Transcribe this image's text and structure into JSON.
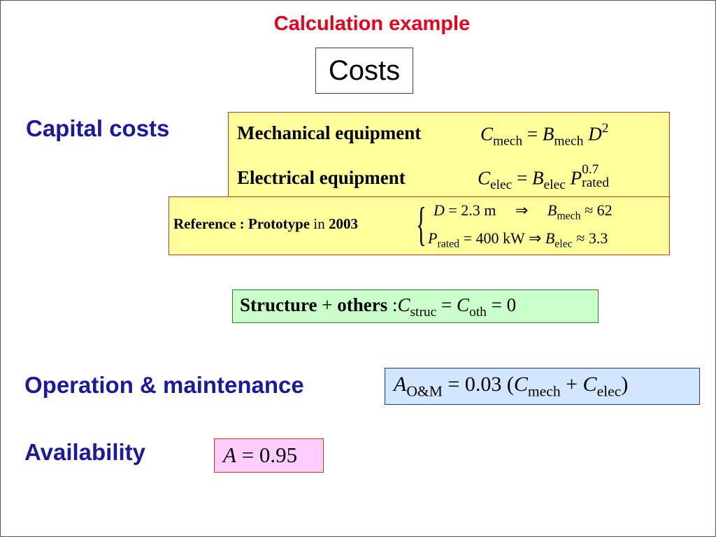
{
  "title": "Calculation example",
  "costs_label": "Costs",
  "sections": {
    "capital": "Capital costs",
    "om": "Operation & maintenance",
    "availability": "Availability"
  },
  "capital_box": {
    "mech_label": "Mechanical equipment",
    "mech_eq": {
      "C": "C",
      "sub": "mech",
      "eq": "=",
      "B": "B",
      "bsub": "mech",
      "D": "D",
      "pow": "2"
    },
    "elec_label": "Electrical equipment",
    "elec_eq": {
      "C": "C",
      "sub": "elec",
      "eq": "=",
      "B": "B",
      "bsub": "elec",
      "P": "P",
      "psub": "rated",
      "pow": "0.7"
    }
  },
  "reference_box": {
    "prefix": "Reference : Prototype",
    "in": "in",
    "year": "2003",
    "line1": {
      "D": "D",
      "val": "= 2.3 m",
      "arrow": "⇒",
      "B": "B",
      "bsub": "mech",
      "approx": "≈ 62"
    },
    "line2": {
      "P": "P",
      "psub": "rated",
      "val": "= 400 kW",
      "arrow": "⇒",
      "B": "B",
      "bsub": "elec",
      "approx": "≈ 3.3"
    }
  },
  "structure_box": {
    "label": "Structure",
    "plus": "+",
    "others": "others",
    "colon": ":",
    "C1": "C",
    "sub1": "struc",
    "eq1": "=",
    "C2": "C",
    "sub2": "oth",
    "eq2": "= 0"
  },
  "om_box": {
    "A": "A",
    "asub": "O&M",
    "eq": "= 0.03 (",
    "C1": "C",
    "sub1": "mech",
    "plus": "+",
    "C2": "C",
    "sub2": "elec",
    "close": ")"
  },
  "availability_box": {
    "A": "A",
    "eq": "= 0.95"
  },
  "colors": {
    "title": "#e8001c",
    "section": "#1a1a9e",
    "yellow_box": "#ffff9c",
    "green_box": "#c9ffc9",
    "blue_box": "#d3e6ff",
    "pink_box": "#ffccff"
  }
}
